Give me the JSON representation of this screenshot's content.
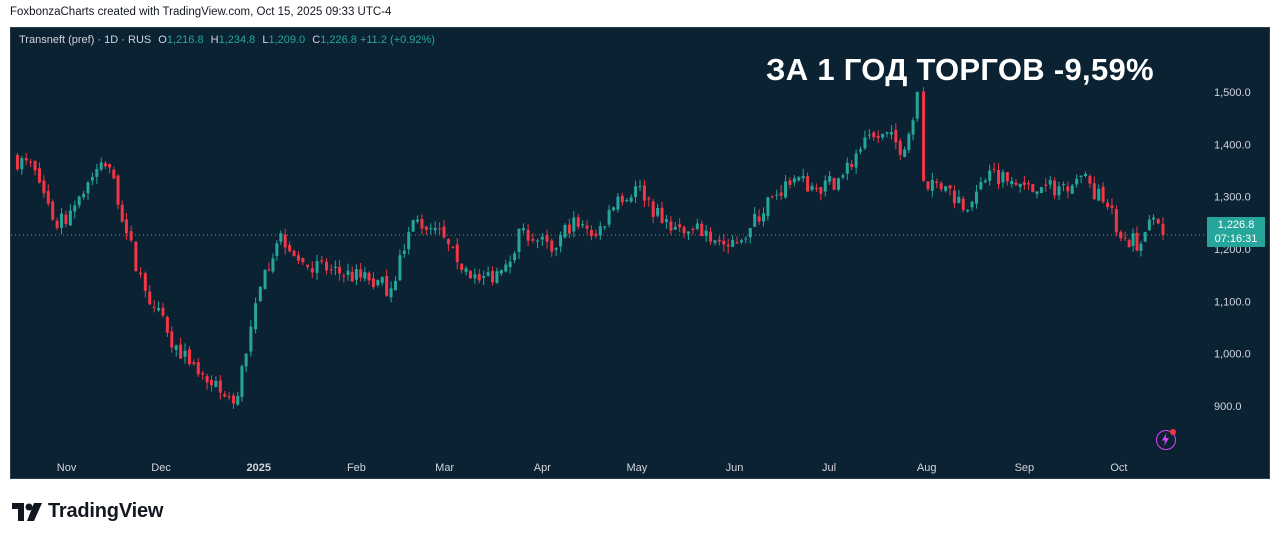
{
  "header": {
    "credit": "FoxbonzaCharts created with TradingView.com, Oct 15, 2025 09:33 UTC-4"
  },
  "legend": {
    "symbol": "Transneft (pref) · 1D · RUS",
    "open_label": "O",
    "open": "1,216.8",
    "high_label": "H",
    "high": "1,234.8",
    "low_label": "L",
    "low": "1,209.0",
    "close_label": "C",
    "close": "1,226.8",
    "change": "+11.2 (+0.92%)"
  },
  "headline": "ЗА 1 ГОД ТОРГОВ -9,59%",
  "price_tag": {
    "price": "1,226.8",
    "countdown": "07:16:31"
  },
  "footer": {
    "brand": "TradingView"
  },
  "colors": {
    "up": "#26a69a",
    "down": "#f23645",
    "background": "#0b2233",
    "accent_icon": "#e040fb"
  },
  "chart_data": {
    "type": "candlestick",
    "title": "",
    "y_ticks": [
      900.0,
      1000.0,
      1100.0,
      1200.0,
      1300.0,
      1400.0,
      1500.0
    ],
    "y_tick_labels": [
      "900.0",
      "1,000.0",
      "1,100.0",
      "1,200.0",
      "1,300.0",
      "1,400.0",
      "1,500.0"
    ],
    "ylim": [
      820,
      1580
    ],
    "x_labels": [
      "Nov",
      "Dec",
      "2025",
      "Feb",
      "Mar",
      "Apr",
      "May",
      "Jun",
      "Jul",
      "Aug",
      "Sep",
      "Oct"
    ],
    "x_label_months": [
      "2024-11",
      "2024-12",
      "2025-01",
      "2025-02",
      "2025-03",
      "2025-04",
      "2025-05",
      "2025-06",
      "2025-07",
      "2025-08",
      "2025-09",
      "2025-10"
    ],
    "last_price": 1226.8,
    "grid": false,
    "series": [
      {
        "date": "2024-10-15",
        "close": 1375
      },
      {
        "date": "2024-10-22",
        "close": 1350
      },
      {
        "date": "2024-10-29",
        "close": 1240
      },
      {
        "date": "2024-11-05",
        "close": 1300
      },
      {
        "date": "2024-11-12",
        "close": 1365
      },
      {
        "date": "2024-11-16",
        "close": 1335
      },
      {
        "date": "2024-11-20",
        "close": 1230
      },
      {
        "date": "2024-11-26",
        "close": 1120
      },
      {
        "date": "2024-12-03",
        "close": 1040
      },
      {
        "date": "2024-12-10",
        "close": 980
      },
      {
        "date": "2024-12-17",
        "close": 940
      },
      {
        "date": "2024-12-24",
        "close": 905
      },
      {
        "date": "2024-12-28",
        "close": 1000
      },
      {
        "date": "2025-01-03",
        "close": 1160
      },
      {
        "date": "2025-01-08",
        "close": 1230
      },
      {
        "date": "2025-01-15",
        "close": 1175
      },
      {
        "date": "2025-01-24",
        "close": 1160
      },
      {
        "date": "2025-02-05",
        "close": 1140
      },
      {
        "date": "2025-02-12",
        "close": 1125
      },
      {
        "date": "2025-02-19",
        "close": 1255
      },
      {
        "date": "2025-02-26",
        "close": 1240
      },
      {
        "date": "2025-03-05",
        "close": 1175
      },
      {
        "date": "2025-03-12",
        "close": 1140
      },
      {
        "date": "2025-03-19",
        "close": 1160
      },
      {
        "date": "2025-03-26",
        "close": 1240
      },
      {
        "date": "2025-04-04",
        "close": 1195
      },
      {
        "date": "2025-04-11",
        "close": 1260
      },
      {
        "date": "2025-04-18",
        "close": 1225
      },
      {
        "date": "2025-04-25",
        "close": 1300
      },
      {
        "date": "2025-05-02",
        "close": 1320
      },
      {
        "date": "2025-05-09",
        "close": 1250
      },
      {
        "date": "2025-05-16",
        "close": 1230
      },
      {
        "date": "2025-05-23",
        "close": 1235
      },
      {
        "date": "2025-05-30",
        "close": 1205
      },
      {
        "date": "2025-06-06",
        "close": 1240
      },
      {
        "date": "2025-06-13",
        "close": 1300
      },
      {
        "date": "2025-06-20",
        "close": 1335
      },
      {
        "date": "2025-06-27",
        "close": 1315
      },
      {
        "date": "2025-07-04",
        "close": 1335
      },
      {
        "date": "2025-07-11",
        "close": 1390
      },
      {
        "date": "2025-07-18",
        "close": 1420
      },
      {
        "date": "2025-07-25",
        "close": 1390
      },
      {
        "date": "2025-07-29",
        "close": 1500
      },
      {
        "date": "2025-07-31",
        "close": 1330
      },
      {
        "date": "2025-08-07",
        "close": 1320
      },
      {
        "date": "2025-08-14",
        "close": 1275
      },
      {
        "date": "2025-08-21",
        "close": 1350
      },
      {
        "date": "2025-08-28",
        "close": 1330
      },
      {
        "date": "2025-09-05",
        "close": 1310
      },
      {
        "date": "2025-09-12",
        "close": 1320
      },
      {
        "date": "2025-09-19",
        "close": 1340
      },
      {
        "date": "2025-09-26",
        "close": 1290
      },
      {
        "date": "2025-10-03",
        "close": 1220
      },
      {
        "date": "2025-10-08",
        "close": 1210
      },
      {
        "date": "2025-10-12",
        "close": 1260
      },
      {
        "date": "2025-10-15",
        "close": 1226.8
      }
    ]
  }
}
